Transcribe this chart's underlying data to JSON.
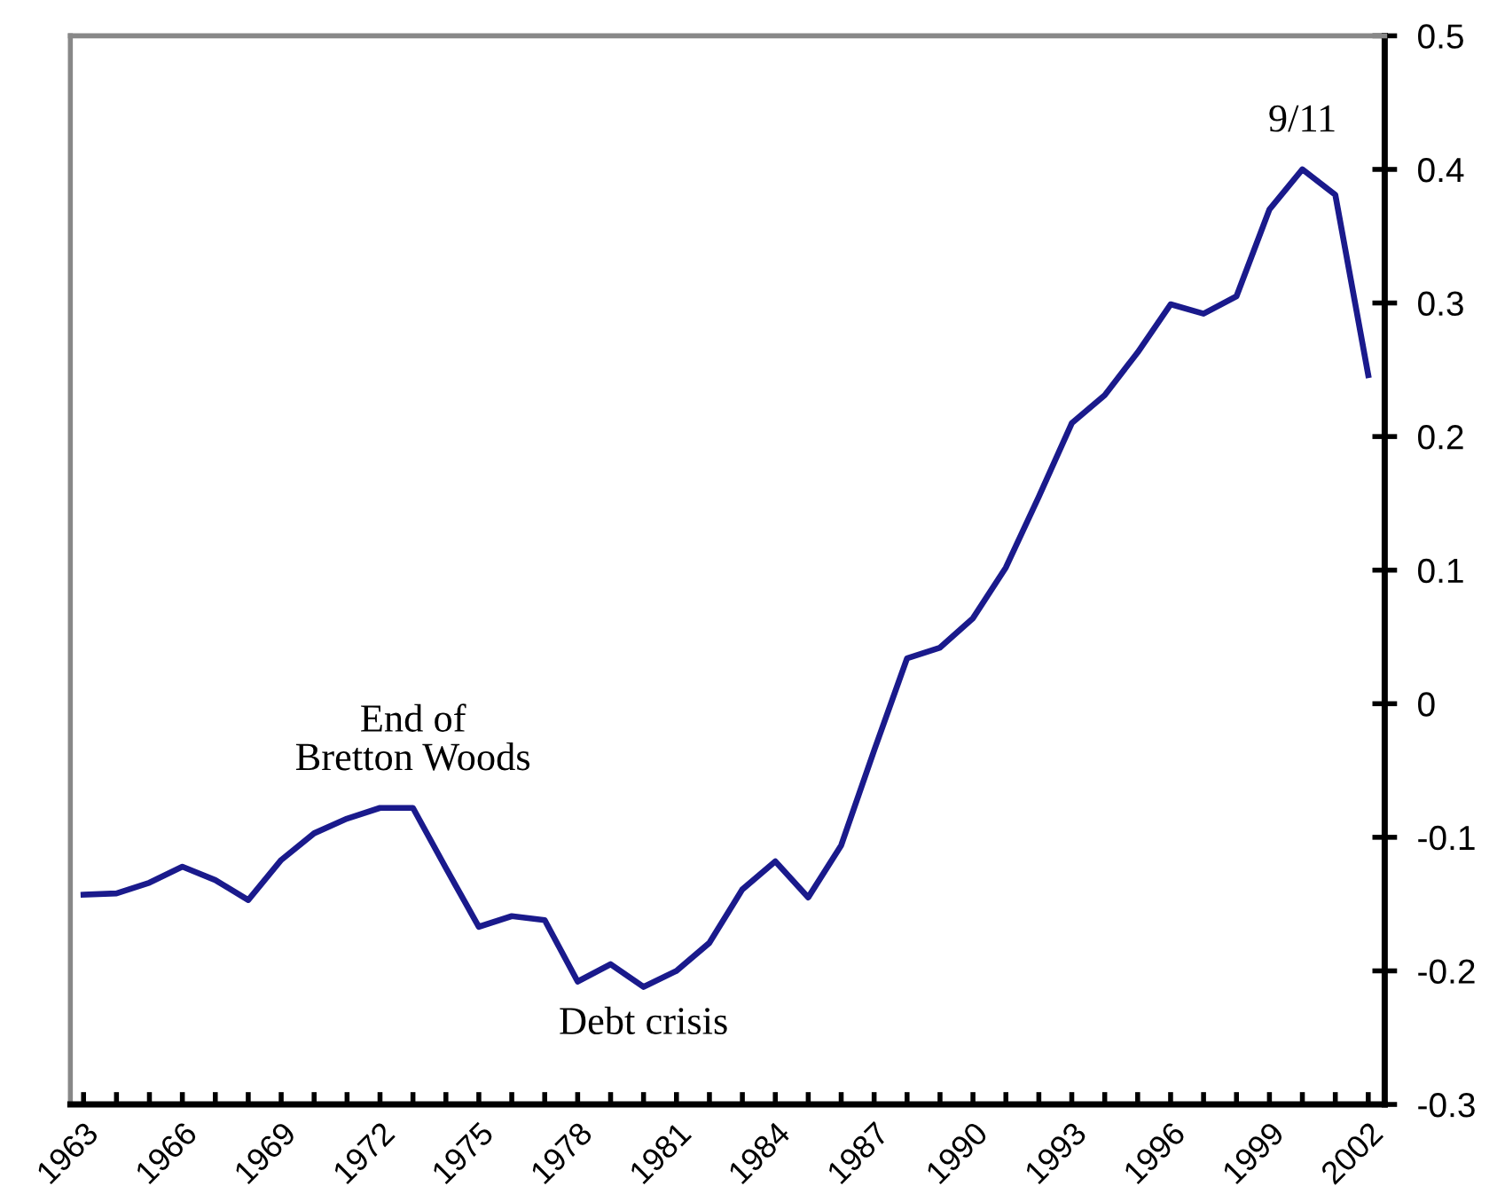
{
  "chart_data": {
    "type": "line",
    "x": [
      1963,
      1964,
      1965,
      1966,
      1967,
      1968,
      1969,
      1970,
      1971,
      1972,
      1973,
      1974,
      1975,
      1976,
      1977,
      1978,
      1979,
      1980,
      1981,
      1982,
      1983,
      1984,
      1985,
      1986,
      1987,
      1988,
      1989,
      1990,
      1991,
      1992,
      1993,
      1994,
      1995,
      1996,
      1997,
      1998,
      1999,
      2000,
      2001,
      2002
    ],
    "series": [
      {
        "color": "#1a1a8c",
        "values": [
          -0.143,
          -0.142,
          -0.134,
          -0.122,
          -0.132,
          -0.147,
          -0.117,
          -0.097,
          -0.086,
          -0.078,
          -0.078,
          -0.123,
          -0.167,
          -0.159,
          -0.162,
          -0.208,
          -0.195,
          -0.212,
          -0.2,
          -0.179,
          -0.139,
          -0.118,
          -0.145,
          -0.106,
          -0.035,
          0.034,
          0.042,
          0.064,
          0.102,
          0.155,
          0.21,
          0.231,
          0.263,
          0.299,
          0.292,
          0.305,
          0.37,
          0.4,
          0.381,
          0.246
        ]
      }
    ],
    "xlim": [
      1962.6,
      2002.5
    ],
    "xticks": [
      {
        "value": 1963,
        "label": "1963"
      },
      {
        "value": 1964,
        "label": null
      },
      {
        "value": 1965,
        "label": null
      },
      {
        "value": 1966,
        "label": "1966"
      },
      {
        "value": 1967,
        "label": null
      },
      {
        "value": 1968,
        "label": null
      },
      {
        "value": 1969,
        "label": "1969"
      },
      {
        "value": 1970,
        "label": null
      },
      {
        "value": 1971,
        "label": null
      },
      {
        "value": 1972,
        "label": "1972"
      },
      {
        "value": 1973,
        "label": null
      },
      {
        "value": 1974,
        "label": null
      },
      {
        "value": 1975,
        "label": "1975"
      },
      {
        "value": 1976,
        "label": null
      },
      {
        "value": 1977,
        "label": null
      },
      {
        "value": 1978,
        "label": "1978"
      },
      {
        "value": 1979,
        "label": null
      },
      {
        "value": 1980,
        "label": null
      },
      {
        "value": 1981,
        "label": "1981"
      },
      {
        "value": 1982,
        "label": null
      },
      {
        "value": 1983,
        "label": null
      },
      {
        "value": 1984,
        "label": "1984"
      },
      {
        "value": 1985,
        "label": null
      },
      {
        "value": 1986,
        "label": null
      },
      {
        "value": 1987,
        "label": "1987"
      },
      {
        "value": 1988,
        "label": null
      },
      {
        "value": 1989,
        "label": null
      },
      {
        "value": 1990,
        "label": "1990"
      },
      {
        "value": 1991,
        "label": null
      },
      {
        "value": 1992,
        "label": null
      },
      {
        "value": 1993,
        "label": "1993"
      },
      {
        "value": 1994,
        "label": null
      },
      {
        "value": 1995,
        "label": null
      },
      {
        "value": 1996,
        "label": "1996"
      },
      {
        "value": 1997,
        "label": null
      },
      {
        "value": 1998,
        "label": null
      },
      {
        "value": 1999,
        "label": "1999"
      },
      {
        "value": 2000,
        "label": null
      },
      {
        "value": 2001,
        "label": null
      },
      {
        "value": 2002,
        "label": "2002"
      }
    ],
    "ylim": [
      -0.3,
      0.5
    ],
    "yticks": [
      -0.3,
      -0.2,
      -0.1,
      0,
      0.1,
      0.2,
      0.3,
      0.4,
      0.5
    ],
    "annotations": [
      {
        "text": "End of\nBretton Woods",
        "x": 1973,
        "y": -0.078
      },
      {
        "text": "Debt crisis",
        "x": 1980,
        "y": -0.212
      },
      {
        "text": "9/11",
        "x": 2000,
        "y": 0.4
      }
    ],
    "grid": false,
    "legend": false,
    "marker": "none",
    "line_style": "solid"
  }
}
